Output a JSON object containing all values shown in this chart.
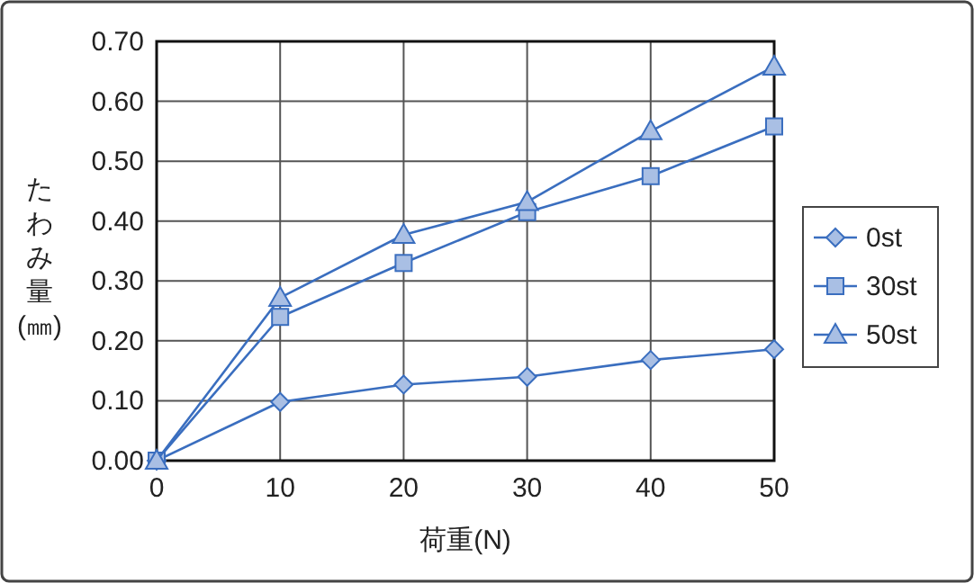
{
  "chart_data": {
    "type": "line",
    "xlabel": "荷重(N)",
    "ylabel": "たわみ量(㎜)",
    "x": [
      0,
      10,
      20,
      30,
      40,
      50
    ],
    "series": [
      {
        "name": "0st",
        "color": "#3a6ebf",
        "marker": "diamond",
        "values": [
          0,
          0.098,
          0.127,
          0.14,
          0.168,
          0.186
        ]
      },
      {
        "name": "30st",
        "color": "#3a6ebf",
        "marker": "square",
        "values": [
          0,
          0.24,
          0.33,
          0.415,
          0.475,
          0.558
        ]
      },
      {
        "name": "50st",
        "color": "#3a6ebf",
        "marker": "triangle",
        "values": [
          0,
          0.272,
          0.377,
          0.432,
          0.55,
          0.658
        ]
      }
    ],
    "xlim": [
      0,
      50
    ],
    "xticks": [
      0,
      10,
      20,
      30,
      40,
      50
    ],
    "ylim": [
      0,
      0.7
    ],
    "yticks": [
      {
        "value": 0,
        "label": "0.00"
      },
      {
        "value": 0.1,
        "label": "0.10"
      },
      {
        "value": 0.2,
        "label": "0.20"
      },
      {
        "value": 0.3,
        "label": "0.30"
      },
      {
        "value": 0.4,
        "label": "0.40"
      },
      {
        "value": 0.5,
        "label": "0.50"
      },
      {
        "value": 0.6,
        "label": "0.60"
      },
      {
        "value": 0.7,
        "label": "0.70"
      }
    ],
    "grid": true,
    "legend": "right",
    "line_style": "solid"
  }
}
